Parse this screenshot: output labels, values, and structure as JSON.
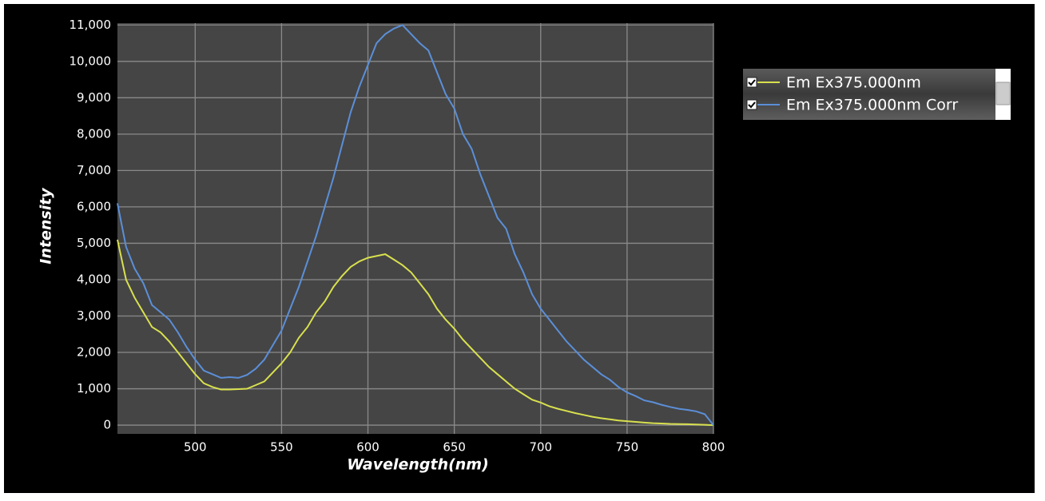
{
  "chart_data": {
    "type": "line",
    "x_label": "Wavelength(nm)",
    "y_label": "Intensity",
    "x": [
      455,
      460,
      465,
      470,
      475,
      480,
      485,
      490,
      495,
      500,
      505,
      510,
      515,
      520,
      525,
      530,
      535,
      540,
      545,
      550,
      555,
      560,
      565,
      570,
      575,
      580,
      585,
      590,
      595,
      600,
      605,
      610,
      615,
      620,
      625,
      630,
      635,
      640,
      645,
      650,
      655,
      660,
      665,
      670,
      675,
      680,
      685,
      690,
      695,
      700,
      705,
      710,
      715,
      720,
      725,
      730,
      735,
      740,
      745,
      750,
      755,
      760,
      765,
      770,
      775,
      780,
      785,
      790,
      795,
      800
    ],
    "series": [
      {
        "name": "Em Ex375.000nm",
        "color": "#d8e04e",
        "values": [
          5100,
          4000,
          3500,
          3100,
          2700,
          2550,
          2300,
          2000,
          1700,
          1400,
          1150,
          1050,
          980,
          980,
          990,
          1000,
          1100,
          1200,
          1450,
          1700,
          2000,
          2400,
          2700,
          3100,
          3400,
          3800,
          4100,
          4350,
          4500,
          4600,
          4650,
          4700,
          4550,
          4400,
          4200,
          3900,
          3600,
          3200,
          2900,
          2650,
          2350,
          2100,
          1850,
          1600,
          1400,
          1200,
          1000,
          850,
          700,
          620,
          520,
          450,
          390,
          330,
          280,
          230,
          190,
          160,
          130,
          110,
          90,
          70,
          55,
          45,
          35,
          30,
          25,
          20,
          10,
          0
        ]
      },
      {
        "name": "Em Ex375.000nm Corr",
        "color": "#5b8fd8",
        "values": [
          6100,
          4900,
          4300,
          3900,
          3300,
          3100,
          2900,
          2550,
          2150,
          1800,
          1500,
          1400,
          1300,
          1320,
          1300,
          1380,
          1550,
          1800,
          2200,
          2600,
          3200,
          3800,
          4500,
          5200,
          6000,
          6800,
          7700,
          8600,
          9300,
          9900,
          10500,
          10750,
          10900,
          11000,
          10750,
          10500,
          10300,
          9700,
          9100,
          8700,
          8000,
          7600,
          6900,
          6300,
          5700,
          5400,
          4700,
          4200,
          3600,
          3200,
          2900,
          2600,
          2300,
          2050,
          1800,
          1600,
          1400,
          1250,
          1050,
          900,
          800,
          680,
          630,
          560,
          500,
          450,
          420,
          380,
          300,
          0
        ]
      }
    ],
    "xlim": [
      455,
      800
    ],
    "ylim": [
      -240,
      11050
    ],
    "xticks": [
      500,
      550,
      600,
      650,
      700,
      750,
      800
    ],
    "yticks": [
      0,
      {
        "value": 1000,
        "label": "1,000"
      },
      {
        "value": 2000,
        "label": "2,000"
      },
      {
        "value": 3000,
        "label": "3,000"
      },
      {
        "value": 4000,
        "label": "4,000"
      },
      {
        "value": 5000,
        "label": "5,000"
      },
      {
        "value": 6000,
        "label": "6,000"
      },
      {
        "value": 7000,
        "label": "7,000"
      },
      {
        "value": 8000,
        "label": "8,000"
      },
      {
        "value": 9000,
        "label": "9,000"
      },
      {
        "value": 10000,
        "label": "10,000"
      },
      {
        "value": 11000,
        "label": "11,000"
      }
    ],
    "grid": true
  }
}
